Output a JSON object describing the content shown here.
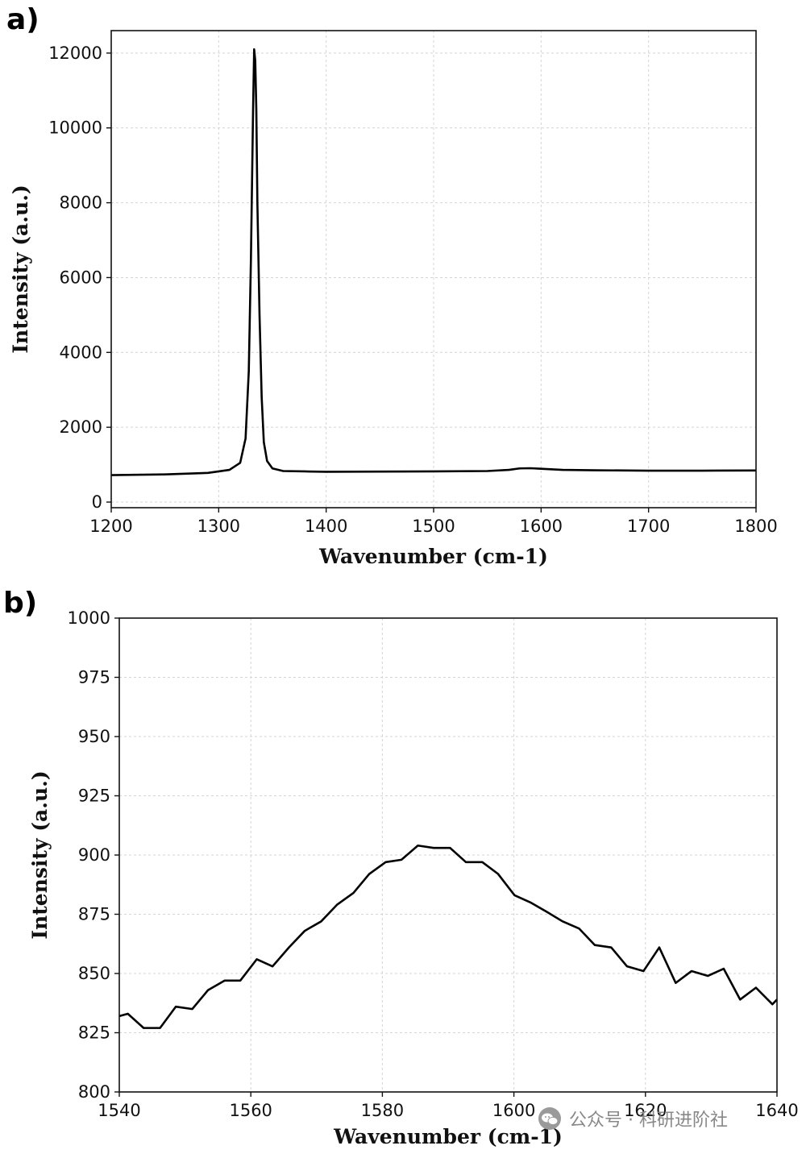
{
  "chart_data": [
    {
      "type": "line",
      "panel_label": "a)",
      "xlabel": "Wavenumber (cm-1)",
      "ylabel": "Intensity (a.u.)",
      "xlim": [
        1200,
        1800
      ],
      "ylim": [
        -150,
        12600
      ],
      "xticks": [
        1200,
        1300,
        1400,
        1500,
        1600,
        1700,
        1800
      ],
      "yticks": [
        0,
        2000,
        4000,
        6000,
        8000,
        10000,
        12000
      ],
      "grid": true,
      "x": [
        1200,
        1250,
        1290,
        1310,
        1320,
        1325,
        1328,
        1330,
        1332,
        1333,
        1334,
        1335,
        1336,
        1338,
        1340,
        1342,
        1345,
        1350,
        1360,
        1380,
        1400,
        1450,
        1500,
        1550,
        1570,
        1580,
        1590,
        1600,
        1620,
        1650,
        1700,
        1750,
        1800
      ],
      "y": [
        720,
        740,
        780,
        860,
        1050,
        1700,
        3500,
        6500,
        10500,
        12100,
        11800,
        10500,
        8000,
        5000,
        2800,
        1600,
        1100,
        900,
        830,
        820,
        810,
        815,
        820,
        830,
        860,
        900,
        905,
        890,
        860,
        850,
        840,
        840,
        845
      ]
    },
    {
      "type": "line",
      "panel_label": "b)",
      "xlabel": "Wavenumber (cm-1)",
      "ylabel": "Intensity (a.u.)",
      "xlim": [
        1540,
        1640
      ],
      "ylim": [
        800,
        1000
      ],
      "xticks": [
        1540,
        1560,
        1580,
        1600,
        1620,
        1640
      ],
      "yticks": [
        800,
        825,
        850,
        875,
        900,
        925,
        950,
        975,
        1000
      ],
      "grid": true,
      "x": [
        1540,
        1541.3,
        1543.7,
        1546.2,
        1548.6,
        1551.1,
        1553.5,
        1556.0,
        1558.4,
        1560.9,
        1563.3,
        1565.8,
        1568.2,
        1570.7,
        1573.1,
        1575.6,
        1578.0,
        1580.5,
        1582.9,
        1585.4,
        1587.8,
        1590.3,
        1592.7,
        1595.2,
        1597.6,
        1600.1,
        1602.5,
        1605.0,
        1607.4,
        1609.9,
        1612.3,
        1614.8,
        1617.2,
        1619.7,
        1622.1,
        1624.6,
        1627.0,
        1629.5,
        1631.9,
        1634.4,
        1636.8,
        1639.3,
        1640
      ],
      "y": [
        832,
        833,
        827,
        827,
        836,
        835,
        843,
        847,
        847,
        856,
        853,
        861,
        868,
        872,
        879,
        884,
        892,
        897,
        898,
        904,
        903,
        903,
        897,
        897,
        892,
        883,
        880,
        876,
        872,
        869,
        862,
        861,
        853,
        851,
        861,
        846,
        851,
        849,
        852,
        839,
        844,
        837,
        839
      ]
    }
  ],
  "watermark": {
    "icon": "wechat-icon",
    "text": "公众号 · 科研进阶社"
  }
}
